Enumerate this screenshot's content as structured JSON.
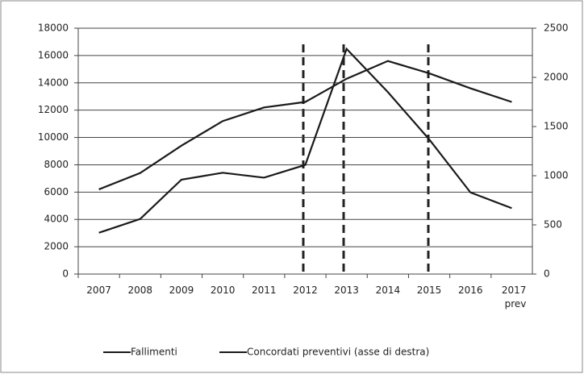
{
  "chart_data": {
    "type": "line",
    "categories": [
      "2007",
      "2008",
      "2009",
      "2010",
      "2011",
      "2012",
      "2013",
      "2014",
      "2015",
      "2016",
      "2017 prev"
    ],
    "series": [
      {
        "name": "Fallimenti",
        "color": "#1a1a1a",
        "values": [
          6200,
          7400,
          9400,
          11200,
          12200,
          12600,
          14300,
          15600,
          14700,
          13600,
          12600
        ]
      },
      {
        "name": "Concordati preventivi (asse di destra)",
        "color": "#1a1a1a",
        "axis": "y2",
        "values": [
          420,
          560,
          960,
          1030,
          980,
          1110,
          2290,
          1850,
          1370,
          830,
          670
        ]
      }
    ],
    "ylim": [
      0,
      18000
    ],
    "yticks": [
      0,
      2000,
      4000,
      6000,
      8000,
      10000,
      12000,
      14000,
      16000,
      18000
    ],
    "y2lim": [
      0,
      2500
    ],
    "y2ticks": [
      0,
      500,
      1000,
      1500,
      2000,
      2500
    ],
    "grid": true
  }
}
